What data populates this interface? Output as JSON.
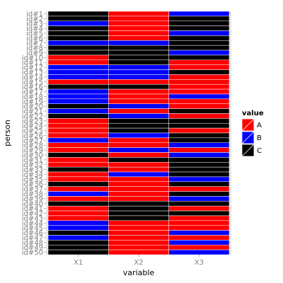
{
  "chart_data": {
    "type": "heatmap",
    "title": "",
    "xlabel": "variable",
    "ylabel": "person",
    "x_categories": [
      "X1",
      "X2",
      "X3"
    ],
    "y_categories": [
      "id#1",
      "id#2",
      "id#3",
      "id#4",
      "id#5",
      "id#6",
      "id#7",
      "id#8",
      "id#9",
      "id#10",
      "id#11",
      "id#12",
      "id#13",
      "id#14",
      "id#15",
      "id#16",
      "id#17",
      "id#18",
      "id#19",
      "id#20",
      "id#21",
      "id#22",
      "id#23",
      "id#24",
      "id#25",
      "id#26",
      "id#27",
      "id#28",
      "id#29",
      "id#30",
      "id#31",
      "id#32",
      "id#33",
      "id#34",
      "id#35",
      "id#36",
      "id#37",
      "id#38",
      "id#39",
      "id#40",
      "id#41",
      "id#42",
      "id#43",
      "id#44",
      "id#45",
      "id#46",
      "id#47",
      "id#48",
      "id#49",
      "id#50"
    ],
    "legend": {
      "title": "value",
      "position": "right",
      "entries": [
        {
          "label": "A",
          "color": "#ff0000"
        },
        {
          "label": "B",
          "color": "#0000ff"
        },
        {
          "label": "C",
          "color": "#000000"
        }
      ]
    },
    "values": [
      [
        "C",
        "A",
        "B"
      ],
      [
        "C",
        "A",
        "C"
      ],
      [
        "B",
        "A",
        "C"
      ],
      [
        "C",
        "A",
        "C"
      ],
      [
        "C",
        "A",
        "B"
      ],
      [
        "C",
        "A",
        "C"
      ],
      [
        "B",
        "B",
        "C"
      ],
      [
        "C",
        "C",
        "C"
      ],
      [
        "C",
        "C",
        "B"
      ],
      [
        "A",
        "C",
        "C"
      ],
      [
        "A",
        "C",
        "A"
      ],
      [
        "B",
        "B",
        "A"
      ],
      [
        "B",
        "B",
        "C"
      ],
      [
        "B",
        "B",
        "A"
      ],
      [
        "A",
        "A",
        "A"
      ],
      [
        "C",
        "C",
        "A"
      ],
      [
        "B",
        "A",
        "A"
      ],
      [
        "B",
        "A",
        "B"
      ],
      [
        "B",
        "A",
        "A"
      ],
      [
        "C",
        "B",
        "A"
      ],
      [
        "B",
        "A",
        "C"
      ],
      [
        "C",
        "B",
        "A"
      ],
      [
        "A",
        "C",
        "C"
      ],
      [
        "A",
        "C",
        "C"
      ],
      [
        "A",
        "C",
        "A"
      ],
      [
        "A",
        "B",
        "C"
      ],
      [
        "B",
        "A",
        "C"
      ],
      [
        "A",
        "A",
        "B"
      ],
      [
        "A",
        "B",
        "A"
      ],
      [
        "C",
        "A",
        "B"
      ],
      [
        "A",
        "C",
        "C"
      ],
      [
        "A",
        "A",
        "C"
      ],
      [
        "C",
        "A",
        "C"
      ],
      [
        "A",
        "B",
        "C"
      ],
      [
        "A",
        "A",
        "B"
      ],
      [
        "C",
        "A",
        "C"
      ],
      [
        "A",
        "A",
        "A"
      ],
      [
        "B",
        "A",
        "C"
      ],
      [
        "A",
        "A",
        "B"
      ],
      [
        "C",
        "C",
        "C"
      ],
      [
        "A",
        "C",
        "A"
      ],
      [
        "A",
        "C",
        "C"
      ],
      [
        "A",
        "C",
        "A"
      ],
      [
        "B",
        "A",
        "A"
      ],
      [
        "B",
        "A",
        "A"
      ],
      [
        "C",
        "A",
        "B"
      ],
      [
        "B",
        "A",
        "A"
      ],
      [
        "C",
        "A",
        "B"
      ],
      [
        "C",
        "A",
        "A"
      ],
      [
        "C",
        "A",
        "B"
      ]
    ],
    "grid": true,
    "background": "#e5e5e5"
  }
}
